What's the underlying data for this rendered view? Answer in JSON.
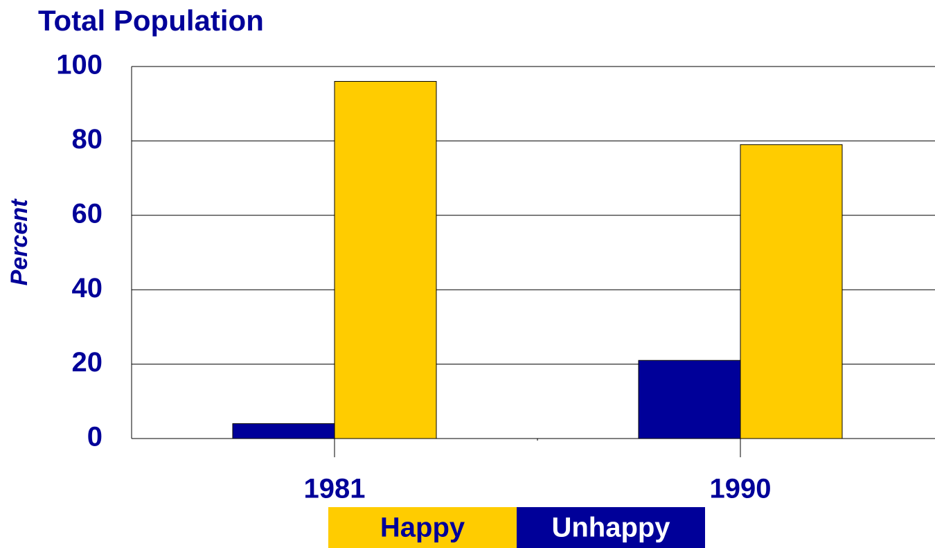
{
  "chart_data": {
    "type": "bar",
    "title": "Total Population",
    "y_label": "Percent",
    "categories": [
      "1981",
      "1990"
    ],
    "series": [
      {
        "name": "Unhappy",
        "color": "#000099",
        "values": [
          4,
          21
        ]
      },
      {
        "name": "Happy",
        "color": "#ffcc00",
        "values": [
          96,
          79
        ]
      }
    ],
    "ylim": [
      0,
      100
    ],
    "yticks": [
      0,
      20,
      40,
      60,
      80,
      100
    ],
    "grid": true
  }
}
